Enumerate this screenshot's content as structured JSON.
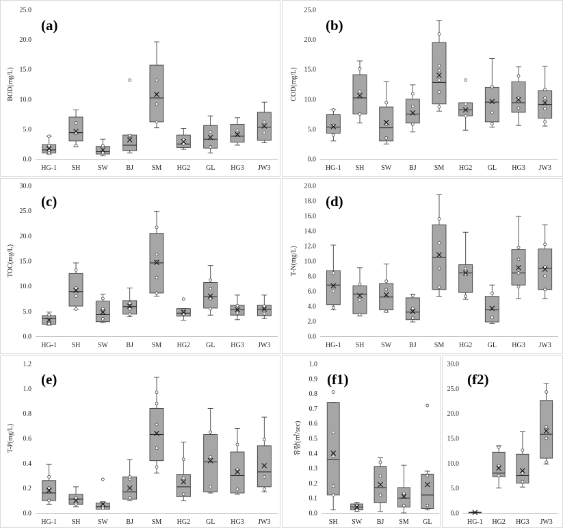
{
  "chart_data": [
    {
      "id": "a",
      "type": "box",
      "label": "(a)",
      "ylabel": "BOD(mg/L)",
      "ylim": [
        0,
        25
      ],
      "yticks": [
        0.0,
        5.0,
        10.0,
        15.0,
        20.0,
        25.0
      ],
      "tick_format": "0.0",
      "categories": [
        "HG-1",
        "SH",
        "SW",
        "BJ",
        "SM",
        "HG2",
        "GL",
        "HG3",
        "JW3"
      ],
      "boxes": [
        {
          "min": 0.8,
          "q1": 1.0,
          "median": 1.5,
          "q3": 2.4,
          "max": 3.8,
          "mean": 1.7,
          "points": [
            1.0,
            1.4,
            2.2,
            3.8
          ]
        },
        {
          "min": 2.0,
          "q1": 3.0,
          "median": 4.4,
          "q3": 7.0,
          "max": 8.2,
          "mean": 4.6,
          "points": [
            2.2,
            4.3,
            6.0
          ]
        },
        {
          "min": 0.5,
          "q1": 0.8,
          "median": 1.2,
          "q3": 2.1,
          "max": 3.3,
          "mean": 1.5,
          "points": [
            1.0,
            2.2
          ]
        },
        {
          "min": 1.0,
          "q1": 1.4,
          "median": 2.3,
          "q3": 4.0,
          "max": 4.0,
          "mean": 3.2,
          "points": [
            3.8,
            3.9,
            13.2
          ]
        },
        {
          "min": 5.2,
          "q1": 6.2,
          "median": 10.2,
          "q3": 15.7,
          "max": 19.6,
          "mean": 10.8,
          "points": [
            6.2,
            9.2,
            13.2
          ]
        },
        {
          "min": 1.6,
          "q1": 1.9,
          "median": 2.5,
          "q3": 4.0,
          "max": 5.1,
          "mean": 2.9,
          "points": [
            2.5,
            3.2
          ]
        },
        {
          "min": 1.0,
          "q1": 1.8,
          "median": 3.3,
          "q3": 5.6,
          "max": 7.2,
          "mean": 3.6,
          "points": [
            2.0,
            4.5
          ]
        },
        {
          "min": 2.3,
          "q1": 2.8,
          "median": 3.8,
          "q3": 5.8,
          "max": 6.9,
          "mean": 4.1,
          "points": [
            4.1,
            4.8
          ]
        },
        {
          "min": 2.7,
          "q1": 3.1,
          "median": 5.3,
          "q3": 7.8,
          "max": 9.5,
          "mean": 5.5,
          "points": [
            4.4,
            6.2
          ]
        }
      ]
    },
    {
      "id": "b",
      "type": "box",
      "label": "(b)",
      "ylabel": "COD(mg/L)",
      "ylim": [
        0,
        25
      ],
      "yticks": [
        0.0,
        5.0,
        10.0,
        15.0,
        20.0,
        25.0
      ],
      "tick_format": "0.0",
      "categories": [
        "HG-1",
        "SH",
        "SW",
        "BJ",
        "SM",
        "HG2",
        "GL",
        "HG3",
        "JW3"
      ],
      "boxes": [
        {
          "min": 3.0,
          "q1": 4.3,
          "median": 5.3,
          "q3": 7.4,
          "max": 8.3,
          "mean": 5.4,
          "points": [
            4.0,
            5.6,
            8.2
          ]
        },
        {
          "min": 6.0,
          "q1": 7.5,
          "median": 10.2,
          "q3": 14.1,
          "max": 16.4,
          "mean": 10.6,
          "points": [
            7.5,
            11.3,
            15.1
          ]
        },
        {
          "min": 2.5,
          "q1": 3.0,
          "median": 5.2,
          "q3": 8.7,
          "max": 12.9,
          "mean": 6.1,
          "points": [
            3.5,
            5.8,
            9.4
          ]
        },
        {
          "min": 4.5,
          "q1": 6.0,
          "median": 7.5,
          "q3": 10.0,
          "max": 12.4,
          "mean": 7.7,
          "points": [
            5.8,
            8.8,
            10.9
          ]
        },
        {
          "min": 8.0,
          "q1": 9.2,
          "median": 12.8,
          "q3": 19.5,
          "max": 23.2,
          "mean": 14.0,
          "points": [
            8.7,
            11.2,
            13.2,
            14.8,
            15.6,
            20.9
          ]
        },
        {
          "min": 4.8,
          "q1": 7.2,
          "median": 8.2,
          "q3": 9.4,
          "max": 9.4,
          "mean": 8.2,
          "points": [
            7.2,
            9.2,
            13.2
          ]
        },
        {
          "min": 5.3,
          "q1": 6.2,
          "median": 9.5,
          "q3": 12.0,
          "max": 16.8,
          "mean": 9.6,
          "points": [
            5.9,
            7.8,
            12.1
          ]
        },
        {
          "min": 5.6,
          "q1": 7.8,
          "median": 9.4,
          "q3": 12.9,
          "max": 15.4,
          "mean": 9.9,
          "points": [
            8.5,
            10.2,
            13.9
          ]
        },
        {
          "min": 5.5,
          "q1": 6.8,
          "median": 9.1,
          "q3": 11.4,
          "max": 15.5,
          "mean": 9.4,
          "points": [
            6.2,
            8.4,
            10.2,
            11.6
          ]
        }
      ]
    },
    {
      "id": "c",
      "type": "box",
      "label": "(c)",
      "ylabel": "TOC(mg/L)",
      "ylim": [
        0,
        30
      ],
      "yticks": [
        0.0,
        5.0,
        10.0,
        15.0,
        20.0,
        25.0,
        30.0
      ],
      "tick_format": "0.0",
      "categories": [
        "HG-1",
        "SH",
        "SW",
        "BJ",
        "SM",
        "HG2",
        "GL",
        "HG3",
        "JW3"
      ],
      "boxes": [
        {
          "min": 2.2,
          "q1": 2.4,
          "median": 3.5,
          "q3": 4.1,
          "max": 4.8,
          "mean": 3.2,
          "points": [
            2.5,
            4.3
          ]
        },
        {
          "min": 5.4,
          "q1": 6.0,
          "median": 8.9,
          "q3": 12.5,
          "max": 14.6,
          "mean": 9.1,
          "points": [
            5.4,
            8.0,
            9.6,
            13.2
          ]
        },
        {
          "min": 2.7,
          "q1": 2.9,
          "median": 4.3,
          "q3": 7.0,
          "max": 8.4,
          "mean": 4.8,
          "points": [
            3.5,
            5.5,
            7.5
          ]
        },
        {
          "min": 3.9,
          "q1": 4.4,
          "median": 5.9,
          "q3": 7.1,
          "max": 9.6,
          "mean": 6.0,
          "points": [
            4.4,
            5.4,
            6.6
          ]
        },
        {
          "min": 8.0,
          "q1": 8.6,
          "median": 14.6,
          "q3": 20.5,
          "max": 24.9,
          "mean": 14.7,
          "points": [
            8.6,
            11.7,
            14.8,
            16.3,
            21.7
          ]
        },
        {
          "min": 3.2,
          "q1": 4.0,
          "median": 4.6,
          "q3": 5.5,
          "max": 5.5,
          "mean": 4.8,
          "points": [
            4.4,
            4.9,
            7.4
          ]
        },
        {
          "min": 4.2,
          "q1": 5.6,
          "median": 7.9,
          "q3": 10.7,
          "max": 14.1,
          "mean": 8.0,
          "points": [
            5.5,
            7.5,
            9.5,
            11.2
          ]
        },
        {
          "min": 3.3,
          "q1": 4.2,
          "median": 5.3,
          "q3": 6.2,
          "max": 8.2,
          "mean": 5.3,
          "points": [
            4.6,
            6.1
          ]
        },
        {
          "min": 3.5,
          "q1": 4.1,
          "median": 5.4,
          "q3": 6.2,
          "max": 8.2,
          "mean": 5.4,
          "points": [
            4.5,
            6.0
          ]
        }
      ]
    },
    {
      "id": "d",
      "type": "box",
      "label": "(d)",
      "ylabel": "T-N(mg/L)",
      "ylim": [
        0,
        20
      ],
      "yticks": [
        0.0,
        2.0,
        4.0,
        6.0,
        8.0,
        10.0,
        12.0,
        14.0,
        16.0,
        18.0,
        20.0
      ],
      "tick_format": "0.0",
      "categories": [
        "HG-1",
        "SH",
        "SW",
        "BJ",
        "SM",
        "HG2",
        "GL",
        "HG3",
        "JW3"
      ],
      "boxes": [
        {
          "min": 3.5,
          "q1": 4.2,
          "median": 6.8,
          "q3": 8.7,
          "max": 12.1,
          "mean": 6.7,
          "points": [
            3.8,
            6.0,
            8.4
          ]
        },
        {
          "min": 2.7,
          "q1": 3.0,
          "median": 5.6,
          "q3": 6.7,
          "max": 9.1,
          "mean": 5.4,
          "points": [
            2.9,
            4.8,
            6.9
          ]
        },
        {
          "min": 3.2,
          "q1": 3.5,
          "median": 5.2,
          "q3": 7.0,
          "max": 9.6,
          "mean": 5.5,
          "points": [
            3.3,
            6.2,
            7.3
          ]
        },
        {
          "min": 1.9,
          "q1": 2.2,
          "median": 3.2,
          "q3": 5.1,
          "max": 5.6,
          "mean": 3.3,
          "points": [
            2.4,
            3.7,
            5.4
          ]
        },
        {
          "min": 5.3,
          "q1": 6.2,
          "median": 10.5,
          "q3": 14.8,
          "max": 18.8,
          "mean": 10.8,
          "points": [
            6.5,
            9.0,
            12.4,
            15.6
          ]
        },
        {
          "min": 4.9,
          "q1": 5.8,
          "median": 8.4,
          "q3": 9.5,
          "max": 13.8,
          "mean": 8.4,
          "points": [
            5.3,
            8.2,
            9.0
          ]
        },
        {
          "min": 1.7,
          "q1": 1.9,
          "median": 3.5,
          "q3": 5.3,
          "max": 6.8,
          "mean": 3.7,
          "points": [
            2.5,
            5.7
          ]
        },
        {
          "min": 5.0,
          "q1": 6.8,
          "median": 8.4,
          "q3": 11.5,
          "max": 15.9,
          "mean": 9.1,
          "points": [
            6.6,
            8.4,
            10.2,
            11.8
          ]
        },
        {
          "min": 5.0,
          "q1": 6.2,
          "median": 9.0,
          "q3": 11.6,
          "max": 14.8,
          "mean": 8.9,
          "points": [
            6.2,
            8.0,
            9.2,
            12.2
          ]
        }
      ]
    },
    {
      "id": "e",
      "type": "box",
      "label": "(e)",
      "ylabel": "T-P(mg/L)",
      "ylim": [
        0,
        1.2
      ],
      "yticks": [
        0.0,
        0.2,
        0.4,
        0.6,
        0.8,
        1.0,
        1.2
      ],
      "tick_format": "0.0",
      "categories": [
        "HG-1",
        "SH",
        "SW",
        "BJ",
        "SM",
        "HG2",
        "GL",
        "HG3",
        "JW3"
      ],
      "boxes": [
        {
          "min": 0.07,
          "q1": 0.1,
          "median": 0.16,
          "q3": 0.26,
          "max": 0.39,
          "mean": 0.18,
          "points": [
            0.1,
            0.2,
            0.29
          ]
        },
        {
          "min": 0.05,
          "q1": 0.07,
          "median": 0.11,
          "q3": 0.15,
          "max": 0.21,
          "mean": 0.1,
          "points": [
            0.07,
            0.12
          ]
        },
        {
          "min": 0.03,
          "q1": 0.03,
          "median": 0.05,
          "q3": 0.08,
          "max": 0.09,
          "mean": 0.07,
          "points": [
            0.04,
            0.06,
            0.27
          ]
        },
        {
          "min": 0.1,
          "q1": 0.11,
          "median": 0.17,
          "q3": 0.29,
          "max": 0.43,
          "mean": 0.2,
          "points": [
            0.12,
            0.27,
            0.29
          ]
        },
        {
          "min": 0.32,
          "q1": 0.42,
          "median": 0.63,
          "q3": 0.84,
          "max": 1.09,
          "mean": 0.64,
          "points": [
            0.37,
            0.52,
            0.71,
            0.88,
            0.97
          ]
        },
        {
          "min": 0.1,
          "q1": 0.13,
          "median": 0.21,
          "q3": 0.31,
          "max": 0.57,
          "mean": 0.25,
          "points": [
            0.15,
            0.28,
            0.43
          ]
        },
        {
          "min": 0.16,
          "q1": 0.17,
          "median": 0.41,
          "q3": 0.63,
          "max": 0.84,
          "mean": 0.42,
          "points": [
            0.21,
            0.45,
            0.65
          ]
        },
        {
          "min": 0.15,
          "q1": 0.16,
          "median": 0.3,
          "q3": 0.49,
          "max": 0.68,
          "mean": 0.33,
          "points": [
            0.19,
            0.35,
            0.55
          ]
        },
        {
          "min": 0.17,
          "q1": 0.21,
          "median": 0.33,
          "q3": 0.54,
          "max": 0.77,
          "mean": 0.38,
          "points": [
            0.19,
            0.29,
            0.59
          ]
        }
      ]
    },
    {
      "id": "f1",
      "type": "box",
      "label": "(f1)",
      "ylabel": "유량(㎥/sec)",
      "ylim": [
        0,
        1.0
      ],
      "yticks": [
        0.0,
        0.1,
        0.2,
        0.3,
        0.4,
        0.5,
        0.6,
        0.7,
        0.8,
        0.9,
        1.0
      ],
      "tick_format": "0.0",
      "categories": [
        "SH",
        "SW",
        "BJ",
        "SM",
        "GL"
      ],
      "boxes": [
        {
          "min": 0.02,
          "q1": 0.12,
          "median": 0.36,
          "q3": 0.74,
          "max": 0.74,
          "mean": 0.4,
          "points": [
            0.12,
            0.18,
            0.38,
            0.54,
            0.81
          ]
        },
        {
          "min": 0.01,
          "q1": 0.02,
          "median": 0.04,
          "q3": 0.06,
          "max": 0.07,
          "mean": 0.04,
          "points": [
            0.02,
            0.05
          ]
        },
        {
          "min": 0.01,
          "q1": 0.07,
          "median": 0.17,
          "q3": 0.31,
          "max": 0.37,
          "mean": 0.19,
          "points": [
            0.12,
            0.25,
            0.34
          ]
        },
        {
          "min": 0.0,
          "q1": 0.04,
          "median": 0.1,
          "q3": 0.17,
          "max": 0.32,
          "mean": 0.11,
          "points": [
            0.05,
            0.13
          ]
        },
        {
          "min": 0.02,
          "q1": 0.03,
          "median": 0.12,
          "q3": 0.26,
          "max": 0.28,
          "mean": 0.19,
          "points": [
            0.05,
            0.25,
            0.72
          ]
        }
      ]
    },
    {
      "id": "f2",
      "type": "box",
      "label": "(f2)",
      "ylabel": "",
      "ylim": [
        0,
        30
      ],
      "yticks": [
        0.0,
        5.0,
        10.0,
        15.0,
        20.0,
        25.0,
        30.0
      ],
      "tick_format": "0.0",
      "categories": [
        "HG-1",
        "HG2",
        "HG3",
        "JW3"
      ],
      "boxes": [
        {
          "min": 0.0,
          "q1": 0.05,
          "median": 0.1,
          "q3": 0.15,
          "max": 0.2,
          "mean": 0.1,
          "points": []
        },
        {
          "min": 5.0,
          "q1": 7.3,
          "median": 8.0,
          "q3": 12.2,
          "max": 13.5,
          "mean": 9.0,
          "points": [
            7.5,
            9.5,
            13.2
          ]
        },
        {
          "min": 5.2,
          "q1": 6.0,
          "median": 7.5,
          "q3": 11.8,
          "max": 16.3,
          "mean": 8.5,
          "points": [
            6.3,
            8.0,
            12.6
          ]
        },
        {
          "min": 9.8,
          "q1": 11.0,
          "median": 15.8,
          "q3": 22.6,
          "max": 26.0,
          "mean": 16.5,
          "points": [
            10.2,
            15.0,
            17.3,
            24.3
          ]
        }
      ]
    }
  ]
}
